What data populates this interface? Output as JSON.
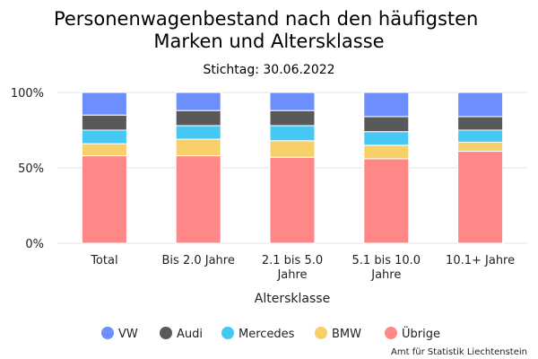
{
  "chart_data": {
    "type": "bar",
    "stacked": true,
    "normalized": true,
    "title": "Personenwagenbestand nach den häufigsten Marken und Altersklasse",
    "title_lines": [
      "Personenwagenbestand nach den häufigsten",
      "Marken und Altersklasse"
    ],
    "subtitle": "Stichtag: 30.06.2022",
    "xlabel": "Altersklasse",
    "ylabel": "",
    "ylim": [
      0,
      100
    ],
    "y_ticks": [
      "0%",
      "50%",
      "100%"
    ],
    "y_tick_values": [
      0,
      50,
      100
    ],
    "grid": true,
    "legend_position": "bottom",
    "categories": [
      "Total",
      "Bis 2.0 Jahre",
      "2.1 bis 5.0 Jahre",
      "5.1 bis 10.0 Jahre",
      "10.1+ Jahre"
    ],
    "category_lines": [
      [
        "Total"
      ],
      [
        "Bis 2.0 Jahre"
      ],
      [
        "2.1 bis 5.0",
        "Jahre"
      ],
      [
        "5.1 bis 10.0",
        "Jahre"
      ],
      [
        "10.1+ Jahre"
      ]
    ],
    "series": [
      {
        "name": "Übrige",
        "color": "#ff8787",
        "values": [
          58,
          58,
          57,
          56,
          61
        ]
      },
      {
        "name": "BMW",
        "color": "#f7d06a",
        "values": [
          8,
          11,
          11,
          9,
          6
        ]
      },
      {
        "name": "Mercedes",
        "color": "#46c8f5",
        "values": [
          9,
          9,
          10,
          9,
          8
        ]
      },
      {
        "name": "Audi",
        "color": "#595959",
        "values": [
          10,
          10,
          10,
          10,
          9
        ]
      },
      {
        "name": "VW",
        "color": "#6c8ffd",
        "values": [
          15,
          12,
          12,
          16,
          16
        ]
      }
    ],
    "legend_order": [
      "VW",
      "Audi",
      "Mercedes",
      "BMW",
      "Übrige"
    ],
    "source": "Amt für Statistik Liechtenstein"
  }
}
